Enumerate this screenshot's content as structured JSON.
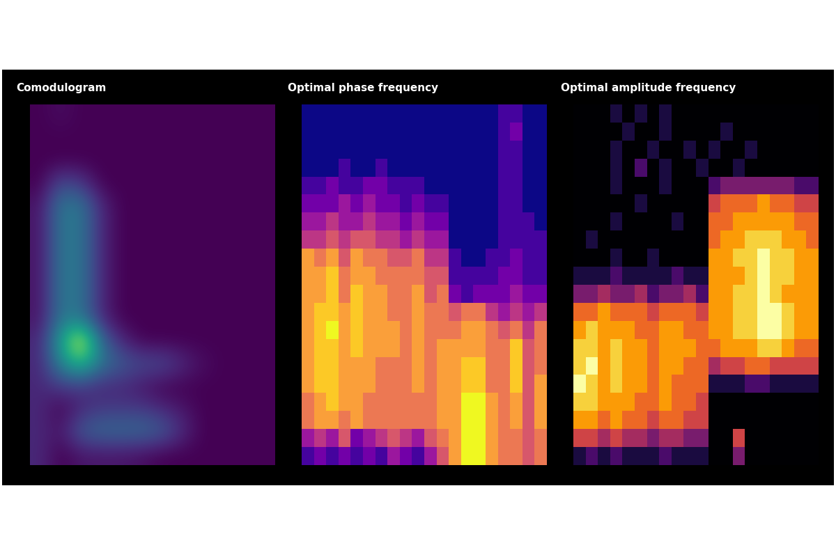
{
  "chart_data": [
    {
      "type": "heatmap",
      "title": "Comodulogram",
      "color": "viridis",
      "tick_labels": false,
      "cells": [
        [
          0,
          0.3,
          0,
          0,
          0,
          0,
          0,
          0,
          0,
          0,
          0,
          0
        ],
        [
          0,
          0,
          0,
          0,
          0,
          0,
          0,
          0,
          0,
          0,
          0,
          0
        ],
        [
          0,
          0,
          0,
          0,
          0,
          0,
          0,
          0,
          0,
          0,
          0,
          0
        ],
        [
          0,
          2,
          1.5,
          0,
          0,
          0,
          0,
          0,
          0,
          0,
          0,
          0
        ],
        [
          0.5,
          3.5,
          3.5,
          1,
          0,
          0,
          0,
          0,
          0,
          0,
          0,
          0
        ],
        [
          0.5,
          3.5,
          3.5,
          1,
          0,
          0,
          0,
          0,
          0,
          0,
          0,
          0
        ],
        [
          0.5,
          3.5,
          3.5,
          1,
          0,
          0,
          0,
          0,
          0,
          0,
          0,
          0
        ],
        [
          0.5,
          3.5,
          3.5,
          1,
          0,
          0,
          0,
          0,
          0,
          0,
          0,
          0
        ],
        [
          0.5,
          3.5,
          3.5,
          1,
          0,
          0,
          0,
          0,
          0,
          0,
          0,
          0
        ],
        [
          0.5,
          3.5,
          3.5,
          1,
          0,
          0,
          0,
          0,
          0,
          0,
          0,
          0
        ],
        [
          1,
          5,
          9,
          3,
          1,
          0,
          0,
          0,
          0,
          0,
          0,
          0
        ],
        [
          1,
          4,
          6,
          3.5,
          2.5,
          2,
          2,
          1,
          0.3,
          0,
          0,
          0
        ],
        [
          1,
          1.5,
          1.5,
          1,
          1,
          0.5,
          0,
          0,
          0,
          0,
          0,
          0
        ],
        [
          1,
          0,
          1,
          1.5,
          1.5,
          1.5,
          1,
          0.5,
          0,
          0,
          0,
          0
        ],
        [
          1,
          0.5,
          2.5,
          3,
          3,
          3,
          2.5,
          1,
          0,
          0,
          0,
          0
        ],
        [
          1,
          0,
          0.5,
          0.5,
          0.5,
          0.3,
          0,
          0,
          0,
          0,
          0,
          0
        ]
      ]
    },
    {
      "type": "heatmap",
      "title": "Optimal phase frequency",
      "color": "plasma",
      "tick_labels": false,
      "cells": [
        [
          0,
          0,
          0,
          0,
          0,
          0,
          0,
          0,
          0,
          0,
          0,
          0,
          0,
          0,
          0,
          0,
          1,
          1,
          0,
          0
        ],
        [
          0,
          0,
          0,
          0,
          0,
          0,
          0,
          0,
          0,
          0,
          0,
          0,
          0,
          0,
          0,
          0,
          1,
          2,
          0,
          0
        ],
        [
          0,
          0,
          0,
          0,
          0,
          0,
          0,
          0,
          0,
          0,
          0,
          0,
          0,
          0,
          0,
          0,
          1,
          1,
          0,
          0
        ],
        [
          0,
          0,
          0,
          1,
          0,
          0,
          1,
          0,
          0,
          0,
          0,
          0,
          0,
          0,
          0,
          0,
          1,
          1,
          0,
          0
        ],
        [
          1,
          1,
          2,
          1,
          1,
          2,
          2,
          1,
          1,
          1,
          0,
          0,
          0,
          0,
          0,
          0,
          1,
          1,
          0,
          0
        ],
        [
          2,
          2,
          2,
          3,
          2,
          3,
          2,
          2,
          1,
          2,
          1,
          1,
          0,
          0,
          0,
          0,
          1,
          1,
          0,
          0
        ],
        [
          3,
          3,
          4,
          3,
          3,
          4,
          3,
          3,
          2,
          3,
          2,
          2,
          0,
          0,
          0,
          0,
          1,
          1,
          1,
          0
        ],
        [
          4,
          4,
          5,
          4,
          5,
          5,
          4,
          4,
          3,
          4,
          3,
          3,
          0,
          0,
          0,
          0,
          1,
          1,
          1,
          1
        ],
        [
          7,
          6,
          7,
          5,
          7,
          6,
          6,
          5,
          5,
          6,
          4,
          4,
          1,
          0,
          0,
          1,
          1,
          2,
          1,
          1
        ],
        [
          7,
          7,
          8,
          6,
          7,
          7,
          6,
          6,
          6,
          6,
          5,
          5,
          1,
          1,
          1,
          1,
          2,
          2,
          1,
          1
        ],
        [
          7,
          7,
          8,
          6,
          8,
          7,
          7,
          6,
          6,
          7,
          5,
          6,
          2,
          1,
          2,
          2,
          2,
          3,
          2,
          2
        ],
        [
          7,
          8,
          8,
          7,
          8,
          7,
          7,
          6,
          6,
          7,
          6,
          6,
          5,
          6,
          6,
          4,
          3,
          4,
          3,
          4
        ],
        [
          7,
          8,
          9,
          7,
          8,
          7,
          7,
          7,
          6,
          7,
          6,
          6,
          6,
          7,
          7,
          6,
          5,
          6,
          4,
          6
        ],
        [
          7,
          8,
          8,
          7,
          8,
          7,
          7,
          7,
          6,
          7,
          6,
          7,
          7,
          7,
          7,
          6,
          6,
          8,
          5,
          6
        ],
        [
          7,
          8,
          8,
          7,
          7,
          7,
          6,
          6,
          6,
          7,
          6,
          7,
          7,
          8,
          8,
          6,
          6,
          8,
          5,
          6
        ],
        [
          7,
          8,
          8,
          7,
          7,
          7,
          6,
          6,
          6,
          7,
          6,
          7,
          7,
          8,
          8,
          6,
          6,
          8,
          5,
          7
        ],
        [
          6,
          7,
          8,
          7,
          7,
          6,
          6,
          6,
          6,
          6,
          6,
          7,
          7,
          9,
          9,
          7,
          6,
          7,
          5,
          7
        ],
        [
          6,
          7,
          7,
          6,
          7,
          6,
          6,
          6,
          6,
          6,
          6,
          7,
          7,
          9,
          9,
          7,
          6,
          7,
          5,
          7
        ],
        [
          3,
          4,
          3,
          5,
          2,
          3,
          4,
          5,
          4,
          3,
          5,
          6,
          7,
          9,
          9,
          7,
          6,
          6,
          5,
          6
        ],
        [
          1,
          2,
          1,
          2,
          1,
          2,
          1,
          3,
          2,
          1,
          3,
          5,
          7,
          9,
          9,
          7,
          6,
          6,
          5,
          6
        ]
      ]
    },
    {
      "type": "heatmap",
      "title": "Optimal amplitude frequency",
      "color": "inferno",
      "tick_labels": false,
      "cells": [
        [
          0,
          0,
          0,
          1,
          0,
          1,
          0,
          1,
          0,
          0,
          0,
          0,
          0,
          0,
          0,
          0,
          0,
          0,
          0,
          0
        ],
        [
          0,
          0,
          0,
          0,
          1,
          0,
          0,
          1,
          0,
          0,
          0,
          0,
          1,
          0,
          0,
          0,
          0,
          0,
          0,
          0
        ],
        [
          0,
          0,
          0,
          1,
          0,
          0,
          1,
          0,
          0,
          1,
          0,
          1,
          0,
          0,
          1,
          0,
          0,
          0,
          0,
          0
        ],
        [
          0,
          0,
          0,
          1,
          0,
          2,
          0,
          1,
          0,
          0,
          1,
          0,
          0,
          1,
          0,
          0,
          0,
          0,
          0,
          0
        ],
        [
          0,
          0,
          0,
          1,
          0,
          0,
          0,
          1,
          0,
          0,
          0,
          2,
          3,
          3,
          3,
          3,
          3,
          3,
          2,
          2
        ],
        [
          0,
          0,
          0,
          0,
          0,
          1,
          0,
          0,
          0,
          0,
          0,
          5,
          6,
          6,
          6,
          7,
          6,
          6,
          5,
          5
        ],
        [
          0,
          0,
          0,
          1,
          0,
          0,
          0,
          0,
          1,
          0,
          0,
          6,
          6,
          7,
          7,
          7,
          7,
          7,
          6,
          6
        ],
        [
          0,
          1,
          0,
          0,
          0,
          0,
          0,
          0,
          0,
          0,
          0,
          6,
          7,
          7,
          8,
          8,
          8,
          7,
          7,
          6
        ],
        [
          0,
          0,
          0,
          1,
          0,
          0,
          1,
          0,
          0,
          0,
          0,
          7,
          7,
          8,
          8,
          9,
          8,
          8,
          7,
          7
        ],
        [
          1,
          1,
          1,
          2,
          1,
          1,
          1,
          1,
          2,
          1,
          1,
          7,
          7,
          7,
          8,
          9,
          8,
          8,
          7,
          7
        ],
        [
          3,
          3,
          4,
          3,
          3,
          4,
          2,
          3,
          3,
          4,
          2,
          7,
          7,
          8,
          8,
          9,
          8,
          7,
          7,
          7
        ],
        [
          6,
          6,
          7,
          6,
          6,
          6,
          5,
          6,
          6,
          6,
          5,
          7,
          7,
          8,
          8,
          9,
          9,
          8,
          7,
          7
        ],
        [
          7,
          8,
          7,
          7,
          7,
          6,
          6,
          7,
          7,
          6,
          6,
          7,
          7,
          8,
          8,
          9,
          9,
          8,
          7,
          7
        ],
        [
          8,
          8,
          7,
          8,
          7,
          7,
          6,
          7,
          7,
          7,
          6,
          6,
          7,
          7,
          7,
          8,
          8,
          7,
          6,
          6
        ],
        [
          8,
          9,
          7,
          8,
          7,
          7,
          6,
          7,
          7,
          6,
          6,
          4,
          5,
          5,
          6,
          6,
          5,
          5,
          5,
          5
        ],
        [
          9,
          8,
          7,
          8,
          7,
          7,
          6,
          7,
          6,
          6,
          6,
          1,
          1,
          1,
          2,
          2,
          1,
          1,
          1,
          1
        ],
        [
          8,
          8,
          7,
          7,
          7,
          6,
          6,
          7,
          6,
          6,
          5,
          0,
          0,
          0,
          0,
          0,
          0,
          0,
          0,
          0
        ],
        [
          7,
          7,
          6,
          7,
          6,
          6,
          5,
          6,
          6,
          5,
          5,
          0,
          0,
          0,
          0,
          0,
          0,
          0,
          0,
          0
        ],
        [
          5,
          5,
          4,
          5,
          4,
          4,
          3,
          4,
          4,
          3,
          3,
          0,
          0,
          5,
          0,
          0,
          0,
          0,
          0,
          0
        ],
        [
          1,
          2,
          1,
          2,
          1,
          1,
          1,
          2,
          1,
          1,
          1,
          0,
          0,
          3,
          0,
          0,
          0,
          0,
          0,
          0
        ]
      ]
    }
  ]
}
